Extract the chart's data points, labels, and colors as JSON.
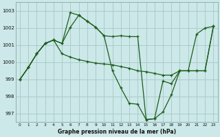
{
  "line1_x": [
    0,
    1,
    2,
    3,
    4,
    5,
    6,
    7,
    8,
    9,
    10,
    11,
    12,
    13,
    14,
    15,
    16,
    17,
    18,
    19,
    20,
    21,
    22,
    23
  ],
  "line1_y": [
    999.0,
    999.7,
    1000.5,
    1001.1,
    1001.3,
    1001.1,
    1002.9,
    1002.75,
    1002.4,
    1002.05,
    1001.55,
    1001.5,
    1001.55,
    1001.5,
    1001.5,
    996.65,
    996.7,
    998.9,
    998.75,
    999.5,
    999.5,
    1001.65,
    1002.0,
    1002.1
  ],
  "line2_x": [
    0,
    1,
    2,
    3,
    4,
    5,
    6,
    7,
    8,
    9,
    10,
    11,
    12,
    13,
    14,
    15,
    16,
    17,
    18,
    19,
    20,
    21,
    22,
    23
  ],
  "line2_y": [
    999.0,
    999.7,
    1000.5,
    1001.1,
    1001.3,
    1000.5,
    1000.3,
    1000.15,
    1000.05,
    999.95,
    999.9,
    999.85,
    999.75,
    999.65,
    999.5,
    999.45,
    999.35,
    999.25,
    999.25,
    999.5,
    999.5,
    999.5,
    999.5,
    1002.1
  ],
  "line3_x": [
    0,
    1,
    2,
    3,
    4,
    5,
    6,
    7,
    8,
    9,
    10,
    11,
    12,
    13,
    14,
    15,
    16,
    17,
    18,
    19,
    20,
    21,
    22,
    23
  ],
  "line3_y": [
    999.0,
    999.7,
    1000.5,
    1001.1,
    1001.3,
    1001.1,
    1002.05,
    1002.75,
    1002.4,
    1002.05,
    1001.55,
    999.5,
    998.5,
    997.6,
    997.55,
    996.65,
    996.7,
    997.1,
    998.1,
    999.5,
    999.5,
    999.5,
    999.5,
    1002.1
  ],
  "bg_color": "#cce8e8",
  "grid_color": "#aacccc",
  "line_color": "#1a5c1a",
  "xlabel": "Graphe pression niveau de la mer (hPa)",
  "ylim": [
    996.5,
    1003.5
  ],
  "xlim": [
    -0.5,
    23.5
  ],
  "yticks": [
    997,
    998,
    999,
    1000,
    1001,
    1002,
    1003
  ],
  "xticks": [
    0,
    1,
    2,
    3,
    4,
    5,
    6,
    7,
    8,
    9,
    10,
    11,
    12,
    13,
    14,
    15,
    16,
    17,
    18,
    19,
    20,
    21,
    22,
    23
  ]
}
